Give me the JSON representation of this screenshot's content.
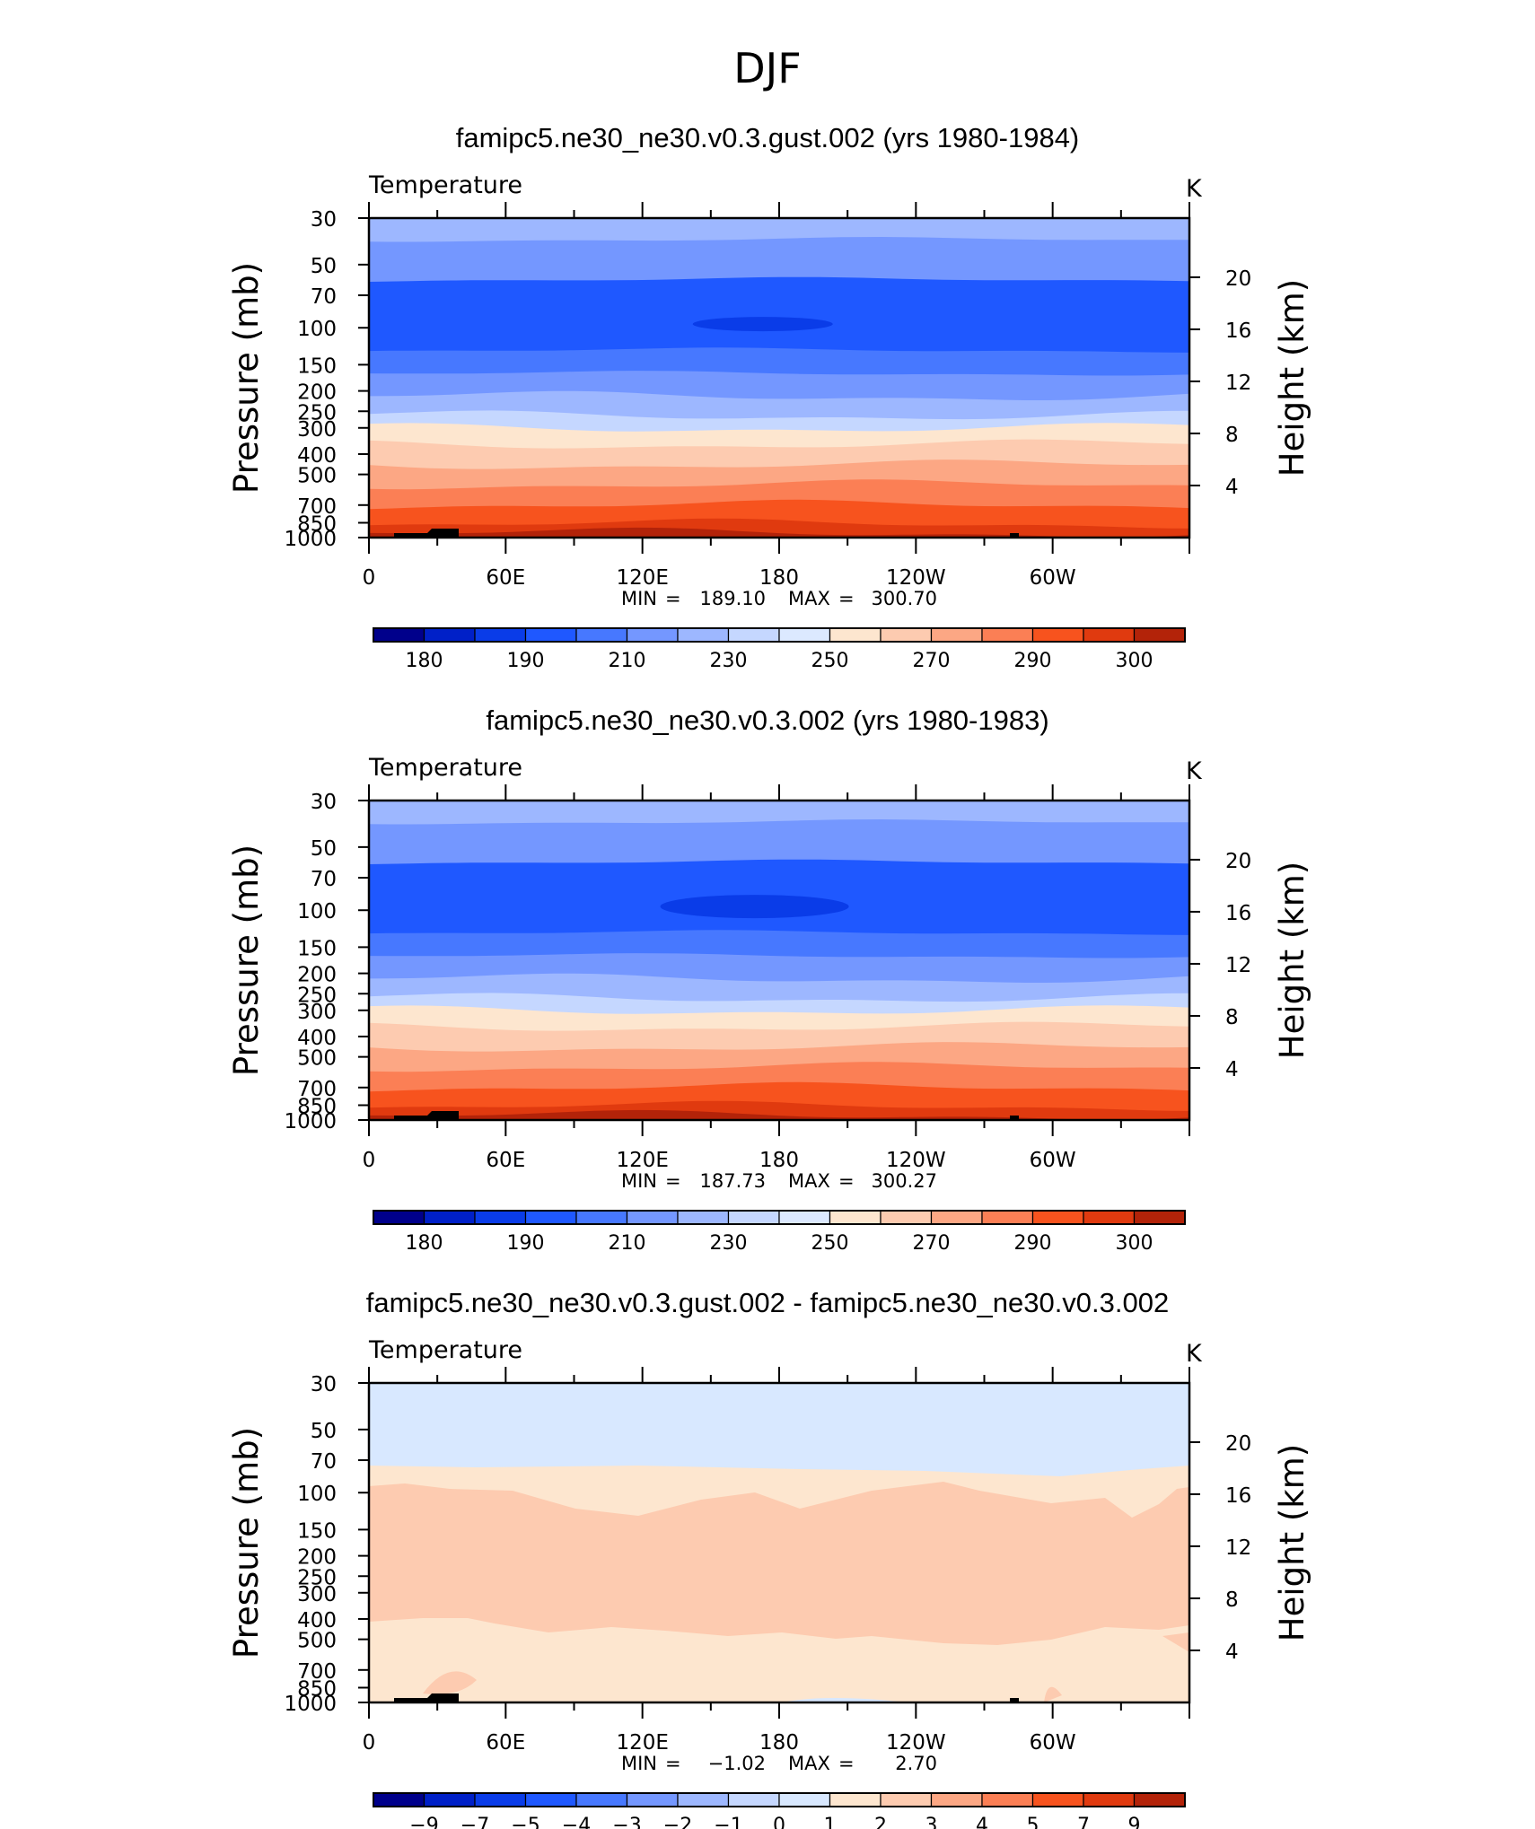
{
  "figure": {
    "title": "DJF"
  },
  "palette": {
    "temperature": [
      "#00008b",
      "#0020c8",
      "#0a3ce8",
      "#1f58ff",
      "#4778ff",
      "#7497ff",
      "#9db7ff",
      "#c5d7ff",
      "#dce9ff",
      "#fde6cf",
      "#fdcbb0",
      "#fca784",
      "#fb7f55",
      "#f7531e",
      "#e03a0f",
      "#b32309",
      "#850c06"
    ],
    "difference": [
      "#00008b",
      "#0020c8",
      "#0a3ce8",
      "#1f58ff",
      "#4778ff",
      "#7497ff",
      "#9db7ff",
      "#c5d7ff",
      "#d8e8ff",
      "#fde6cf",
      "#fdcbb0",
      "#fca784",
      "#fb7f55",
      "#f7531e",
      "#e03a0f",
      "#b32309"
    ]
  },
  "panels": [
    {
      "title": "famipc5.ne30_ne30.v0.3.gust.002 (yrs 1980-1984)",
      "variable": "Temperature",
      "units": "K",
      "min_label": "MIN",
      "min_value": "189.10",
      "max_label": "MAX",
      "max_value": "300.70",
      "colorbar_ticks": [
        "180",
        "190",
        "210",
        "230",
        "250",
        "270",
        "290",
        "300"
      ]
    },
    {
      "title": "famipc5.ne30_ne30.v0.3.002 (yrs 1980-1983)",
      "variable": "Temperature",
      "units": "K",
      "min_label": "MIN",
      "min_value": "187.73",
      "max_label": "MAX",
      "max_value": "300.27",
      "colorbar_ticks": [
        "180",
        "190",
        "210",
        "230",
        "250",
        "270",
        "290",
        "300"
      ]
    },
    {
      "title": "famipc5.ne30_ne30.v0.3.gust.002 - famipc5.ne30_ne30.v0.3.002",
      "variable": "Temperature",
      "units": "K",
      "min_label": "MIN",
      "min_value": "−1.02",
      "max_label": "MAX",
      "max_value": "2.70",
      "colorbar_ticks": [
        "−9",
        "−7",
        "−5",
        "−4",
        "−3",
        "−2",
        "−1",
        "0",
        "1",
        "2",
        "3",
        "4",
        "5",
        "7",
        "9"
      ]
    }
  ],
  "chart_data": [
    {
      "type": "heatmap",
      "title": "famipc5.ne30_ne30.v0.3.gust.002 (yrs 1980-1984)",
      "variable": "Temperature",
      "units": "K",
      "xlabel": "",
      "ylabel": "Pressure (mb)",
      "ylabel_right": "Height (km)",
      "x_ticks": [
        "0",
        "60E",
        "120E",
        "180",
        "120W",
        "60W"
      ],
      "x_range_deg": [
        0,
        360
      ],
      "y_ticks": [
        "30",
        "50",
        "70",
        "100",
        "150",
        "200",
        "250",
        "300",
        "400",
        "500",
        "700",
        "850",
        "1000"
      ],
      "y_range": [
        30,
        1000
      ],
      "y_scale": "log",
      "height_ticks": [
        "20",
        "16",
        "12",
        "8",
        "4"
      ],
      "min": 189.1,
      "max": 300.7,
      "contour_levels": [
        180,
        185,
        190,
        200,
        210,
        220,
        230,
        240,
        250,
        260,
        270,
        280,
        290,
        295,
        300
      ]
    },
    {
      "type": "heatmap",
      "title": "famipc5.ne30_ne30.v0.3.002 (yrs 1980-1983)",
      "variable": "Temperature",
      "units": "K",
      "xlabel": "",
      "ylabel": "Pressure (mb)",
      "ylabel_right": "Height (km)",
      "x_ticks": [
        "0",
        "60E",
        "120E",
        "180",
        "120W",
        "60W"
      ],
      "x_range_deg": [
        0,
        360
      ],
      "y_ticks": [
        "30",
        "50",
        "70",
        "100",
        "150",
        "200",
        "250",
        "300",
        "400",
        "500",
        "700",
        "850",
        "1000"
      ],
      "y_range": [
        30,
        1000
      ],
      "y_scale": "log",
      "height_ticks": [
        "20",
        "16",
        "12",
        "8",
        "4"
      ],
      "min": 187.73,
      "max": 300.27,
      "contour_levels": [
        180,
        185,
        190,
        200,
        210,
        220,
        230,
        240,
        250,
        260,
        270,
        280,
        290,
        295,
        300
      ]
    },
    {
      "type": "heatmap",
      "title": "famipc5.ne30_ne30.v0.3.gust.002 - famipc5.ne30_ne30.v0.3.002",
      "variable": "Temperature",
      "units": "K",
      "xlabel": "",
      "ylabel": "Pressure (mb)",
      "ylabel_right": "Height (km)",
      "x_ticks": [
        "0",
        "60E",
        "120E",
        "180",
        "120W",
        "60W"
      ],
      "x_range_deg": [
        0,
        360
      ],
      "y_ticks": [
        "30",
        "50",
        "70",
        "100",
        "150",
        "200",
        "250",
        "300",
        "400",
        "500",
        "700",
        "850",
        "1000"
      ],
      "y_range": [
        30,
        1000
      ],
      "y_scale": "log",
      "height_ticks": [
        "20",
        "16",
        "12",
        "8",
        "4"
      ],
      "min": -1.02,
      "max": 2.7,
      "contour_levels": [
        -9,
        -7,
        -5,
        -4,
        -3,
        -2,
        -1,
        0,
        1,
        2,
        3,
        4,
        5,
        7,
        9
      ]
    }
  ]
}
